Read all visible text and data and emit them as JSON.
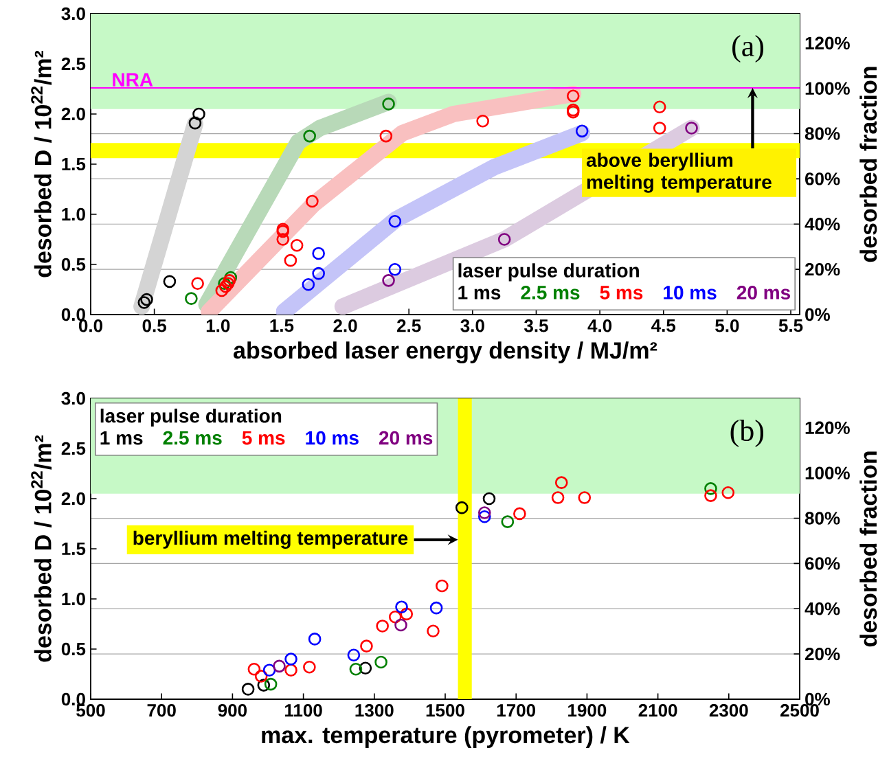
{
  "chart_data": [
    {
      "type": "scatter",
      "xlabel": "absorbed laser energy density / MJ/m²",
      "ylabel": "desorbed D / 10$^{22}$/m²",
      "y2label": "desorbed fraction",
      "legend_title": "laser pulse duration",
      "annotations": [
        "(a)",
        {
          "text": "above beryllium melting temperature",
          "x": 5.2,
          "y": 2.26
        }
      ],
      "xlim": [
        0,
        5.57
      ],
      "ylim": [
        0,
        3.0
      ],
      "y2lim": [
        0,
        133
      ],
      "xticks": [
        {
          "value": 0,
          "label": "0.0"
        },
        0.5,
        {
          "value": 1,
          "label": "1.0"
        },
        1.5,
        {
          "value": 2,
          "label": "2.0"
        },
        2.5,
        {
          "value": 3,
          "label": "3.0"
        },
        3.5,
        {
          "value": 4,
          "label": "4.0"
        },
        4.5,
        {
          "value": 5,
          "label": "5.0"
        },
        5.5
      ],
      "yticks": [
        {
          "value": 0,
          "label": "0.0"
        },
        0.5,
        {
          "value": 1,
          "label": "1.0"
        },
        1.5,
        {
          "value": 2,
          "label": "2.0"
        },
        2.5,
        {
          "value": 3,
          "label": "3.0"
        }
      ],
      "y2ticks": [
        {
          "value": 0,
          "label": "0%"
        },
        {
          "value": 20,
          "label": "20%"
        },
        {
          "value": 40,
          "label": "40%"
        },
        {
          "value": 60,
          "label": "60%"
        },
        {
          "value": 80,
          "label": "80%"
        },
        {
          "value": 100,
          "label": "100%"
        },
        {
          "value": 120,
          "label": "120%"
        }
      ],
      "grid": "y2",
      "legend": "bottom right",
      "marker": "circle",
      "ref_lines": [
        {
          "axis": "y",
          "value": 2.26,
          "label": "NRA",
          "color": "#ff00ff"
        }
      ],
      "bands": [
        {
          "axis": "y",
          "from": 2.05,
          "to": 3.0,
          "color": "#c6f9c6"
        },
        {
          "axis": "y",
          "from": 1.56,
          "to": 1.71,
          "color": "#ffff00"
        }
      ],
      "series": [
        {
          "type": "line",
          "marker": "none",
          "color": "#d4d4d4",
          "x": [
            0.4,
            0.82
          ],
          "values": [
            0.08,
            1.9
          ]
        },
        {
          "type": "line",
          "marker": "none",
          "color": "#b8d9b8",
          "x": [
            0.91,
            1.63,
            1.8,
            2.34
          ],
          "values": [
            0.1,
            1.72,
            1.86,
            2.12
          ]
        },
        {
          "type": "line",
          "marker": "none",
          "color": "#f9c0c0",
          "x": [
            0.93,
            1.75,
            2.45,
            2.85,
            3.79
          ],
          "values": [
            0.03,
            1.1,
            1.81,
            2.0,
            2.2
          ]
        },
        {
          "type": "line",
          "marker": "none",
          "color": "#c4c4f8",
          "x": [
            1.52,
            2.4,
            3.17,
            3.86
          ],
          "values": [
            0.03,
            0.95,
            1.47,
            1.81
          ]
        },
        {
          "type": "line",
          "marker": "none",
          "color": "#dccbe0",
          "x": [
            1.98,
            3.25,
            4.72
          ],
          "values": [
            0.08,
            0.75,
            1.86
          ]
        },
        {
          "name": "1 ms",
          "color": "#000000",
          "x": [
            0.42,
            0.44,
            0.62,
            0.82,
            0.85
          ],
          "values": [
            0.12,
            0.15,
            0.33,
            1.91,
            2.0
          ]
        },
        {
          "name": "2.5 ms",
          "color": "#008000",
          "x": [
            0.79,
            1.05,
            1.1,
            1.72,
            2.34
          ],
          "values": [
            0.16,
            0.31,
            0.37,
            1.78,
            2.1
          ]
        },
        {
          "name": "5 ms",
          "color": "#ff0000",
          "x": [
            0.84,
            1.03,
            1.06,
            1.08,
            1.09,
            1.51,
            1.51,
            1.51,
            1.62,
            1.57,
            1.74,
            2.32,
            3.08,
            3.79,
            3.79,
            3.79,
            4.47,
            4.47
          ],
          "values": [
            0.31,
            0.24,
            0.28,
            0.31,
            0.34,
            0.85,
            0.83,
            0.75,
            0.69,
            0.54,
            1.13,
            1.78,
            1.93,
            2.18,
            2.04,
            2.02,
            2.07,
            1.86
          ]
        },
        {
          "name": "10 ms",
          "color": "#0000ff",
          "x": [
            1.71,
            1.79,
            1.79,
            2.39,
            2.39,
            3.86
          ],
          "values": [
            0.3,
            0.41,
            0.61,
            0.45,
            0.93,
            1.83
          ]
        },
        {
          "name": "20 ms",
          "color": "#800080",
          "x": [
            2.34,
            3.25,
            4.72
          ],
          "values": [
            0.34,
            0.75,
            1.86
          ]
        }
      ]
    },
    {
      "type": "scatter",
      "xlabel": "max. temperature (pyrometer) / K",
      "ylabel": "desorbed D / 10$^{22}$/m²",
      "y2label": "desorbed fraction",
      "legend_title": "laser pulse duration",
      "annotations": [
        "(b)"
      ],
      "xlim": [
        500,
        2500
      ],
      "ylim": [
        0,
        3.0
      ],
      "y2lim": [
        0,
        133
      ],
      "xticks": [
        500,
        700,
        900,
        1100,
        1300,
        1500,
        1700,
        1900,
        2100,
        2300,
        2500
      ],
      "yticks": [
        {
          "value": 0,
          "label": "0.0"
        },
        0.5,
        {
          "value": 1,
          "label": "1.0"
        },
        1.5,
        {
          "value": 2,
          "label": "2.0"
        },
        2.5,
        {
          "value": 3,
          "label": "3.0"
        }
      ],
      "y2ticks": [
        {
          "value": 0,
          "label": "0%"
        },
        {
          "value": 20,
          "label": "20%"
        },
        {
          "value": 40,
          "label": "40%"
        },
        {
          "value": 60,
          "label": "60%"
        },
        {
          "value": 80,
          "label": "80%"
        },
        {
          "value": 100,
          "label": "100%"
        },
        {
          "value": 120,
          "label": "120%"
        }
      ],
      "grid": "y2",
      "legend": "top left",
      "marker": "circle",
      "bands": [
        {
          "axis": "y",
          "from": 2.05,
          "to": 3.0,
          "color": "#c6f9c6"
        },
        {
          "axis": "x",
          "from": 1536,
          "to": 1575,
          "label": "beryllium melting temperature",
          "color": "#ffff00"
        }
      ],
      "series": [
        {
          "name": "1 ms",
          "color": "#000000",
          "x": [
            944,
            988,
            1275,
            1547,
            1624
          ],
          "values": [
            0.1,
            0.14,
            0.31,
            1.91,
            2.0
          ]
        },
        {
          "name": "2.5 ms",
          "color": "#008000",
          "x": [
            1008,
            1248,
            1319,
            1676,
            2249
          ],
          "values": [
            0.15,
            0.3,
            0.37,
            1.77,
            2.1
          ]
        },
        {
          "name": "5 ms",
          "color": "#ff0000",
          "x": [
            961,
            981,
            1065,
            1117,
            1278,
            1323,
            1359,
            1391,
            1466,
            1491,
            1710,
            1818,
            1828,
            1893,
            2249,
            2298
          ],
          "values": [
            0.3,
            0.23,
            0.29,
            0.32,
            0.53,
            0.73,
            0.82,
            0.85,
            0.68,
            1.13,
            1.85,
            2.01,
            2.16,
            2.01,
            2.03,
            2.06
          ]
        },
        {
          "name": "10 ms",
          "color": "#0000ff",
          "x": [
            1004,
            1065,
            1132,
            1242,
            1377,
            1475,
            1611
          ],
          "values": [
            0.29,
            0.4,
            0.6,
            0.44,
            0.92,
            0.91,
            1.82
          ]
        },
        {
          "name": "20 ms",
          "color": "#800080",
          "x": [
            1032,
            1375,
            1611
          ],
          "values": [
            0.33,
            0.74,
            1.86
          ]
        }
      ]
    }
  ]
}
